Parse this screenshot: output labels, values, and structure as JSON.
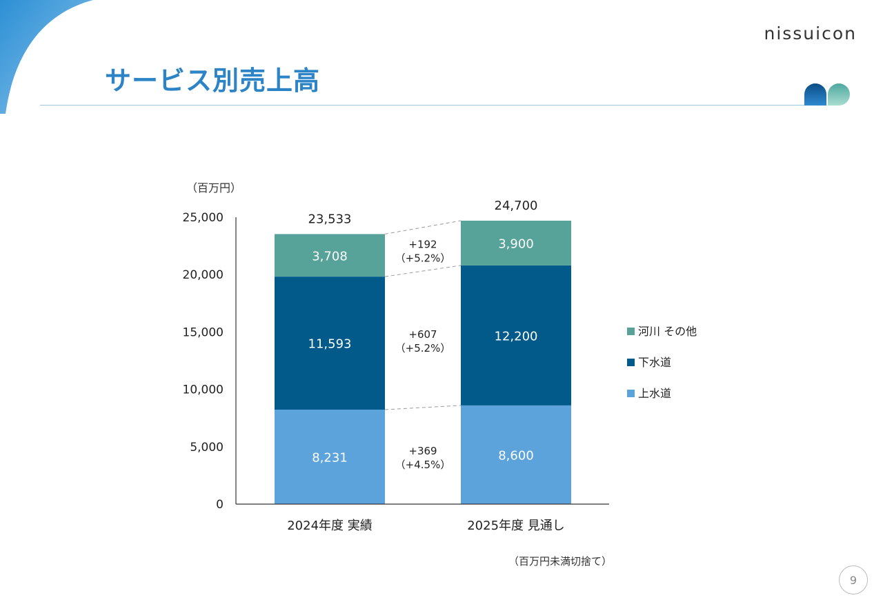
{
  "header": {
    "title": "サービス別売上高",
    "logo_text": "nissuicon"
  },
  "footer": {
    "note": "（百万円未満切捨て）",
    "page_number": "9"
  },
  "colors": {
    "kasen": "#57a39a",
    "gesuido": "#015a8a",
    "josuido": "#5ba3da",
    "title": "#2c84c6",
    "axis": "#333333",
    "connector": "#9a9a9a"
  },
  "chart_data": {
    "type": "bar",
    "stacked": true,
    "unit_label": "（百万円）",
    "categories": [
      "2024年度 実績",
      "2025年度 見通し"
    ],
    "series": [
      {
        "name": "上水道",
        "values": [
          8231,
          8600
        ],
        "labels": [
          "8,231",
          "8,600"
        ],
        "color": "#5ba3da"
      },
      {
        "name": "下水道",
        "values": [
          11593,
          12200
        ],
        "labels": [
          "11,593",
          "12,200"
        ],
        "color": "#015a8a"
      },
      {
        "name": "河川 その他",
        "values": [
          3708,
          3900
        ],
        "labels": [
          "3,708",
          "3,900"
        ],
        "color": "#57a39a"
      }
    ],
    "totals": [
      23533,
      24700
    ],
    "total_labels": [
      "23,533",
      "24,700"
    ],
    "changes": [
      {
        "delta": "+369",
        "pct": "（+4.5%）"
      },
      {
        "delta": "+607",
        "pct": "（+5.2%）"
      },
      {
        "delta": "+192",
        "pct": "（+5.2%）"
      }
    ],
    "yticks": [
      0,
      5000,
      10000,
      15000,
      20000,
      25000
    ],
    "ytick_labels": [
      "0",
      "5,000",
      "10,000",
      "15,000",
      "20,000",
      "25,000"
    ],
    "ylim": [
      0,
      25000
    ],
    "legend_position": "right",
    "grid": false
  }
}
